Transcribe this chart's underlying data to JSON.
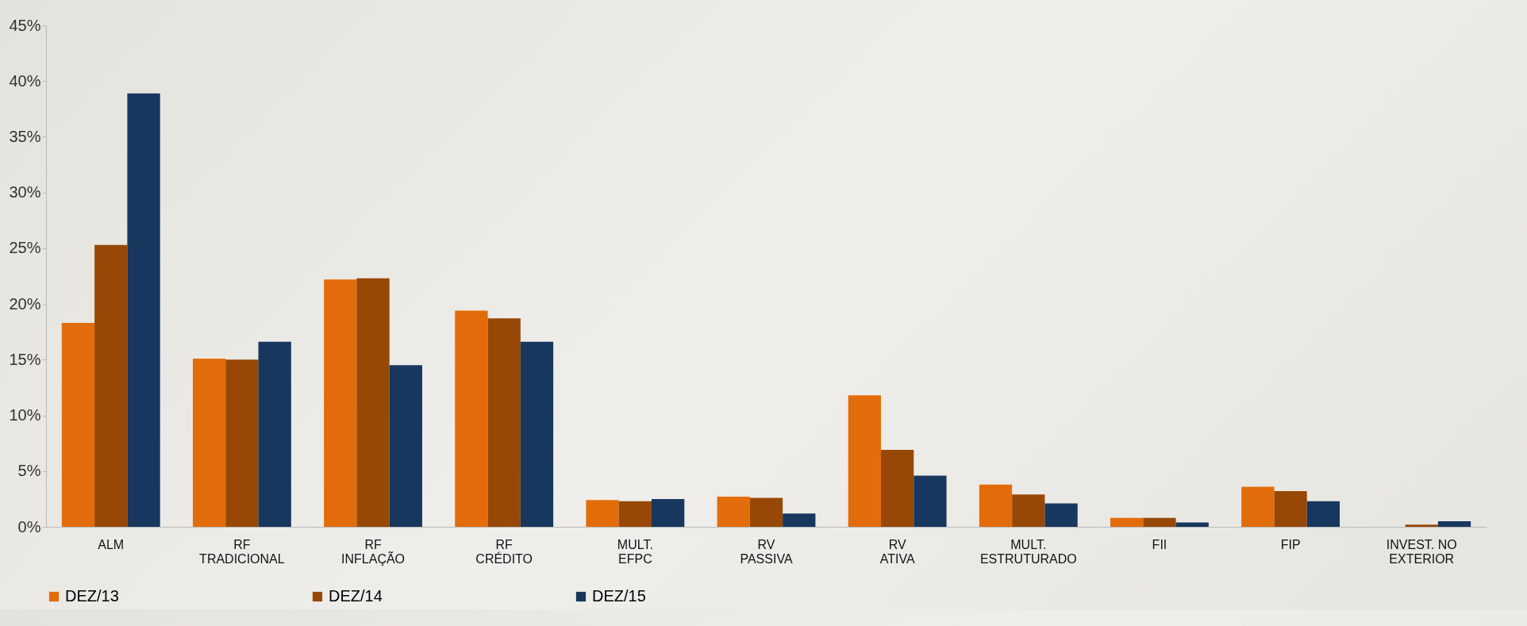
{
  "chart_data": {
    "type": "bar",
    "categories": [
      "ALM",
      "RF\nTRADICIONAL",
      "RF\nINFLAÇÃO",
      "RF\nCRÉDITO",
      "MULT.\nEFPC",
      "RV\nPASSIVA",
      "RV\nATIVA",
      "MULT.\nESTRUTURADO",
      "FII",
      "FIP",
      "INVEST. NO\nEXTERIOR"
    ],
    "series": [
      {
        "name": "DEZ/13",
        "color": "#e36c0a",
        "values": [
          18.3,
          15.1,
          22.2,
          19.4,
          2.4,
          2.7,
          11.8,
          3.8,
          0.8,
          3.6,
          null
        ]
      },
      {
        "name": "DEZ/14",
        "color": "#974806",
        "values": [
          25.3,
          15.0,
          22.3,
          18.7,
          2.3,
          2.6,
          6.9,
          2.9,
          0.8,
          3.2,
          0.2
        ]
      },
      {
        "name": "DEZ/15",
        "color": "#17375e",
        "values": [
          38.9,
          16.6,
          14.5,
          16.6,
          2.5,
          1.2,
          4.6,
          2.1,
          0.4,
          2.3,
          0.5
        ]
      }
    ],
    "ylim": [
      0,
      45
    ],
    "yticks": [
      {
        "value": 0,
        "label": "0%"
      },
      {
        "value": 5,
        "label": "5%"
      },
      {
        "value": 10,
        "label": "10%"
      },
      {
        "value": 15,
        "label": "15%"
      },
      {
        "value": 20,
        "label": "20%"
      },
      {
        "value": 25,
        "label": "25%"
      },
      {
        "value": 30,
        "label": "30%"
      },
      {
        "value": 35,
        "label": "35%"
      },
      {
        "value": 40,
        "label": "40%"
      },
      {
        "value": 45,
        "label": "45%"
      }
    ],
    "grid": false,
    "legend": "bottom"
  }
}
